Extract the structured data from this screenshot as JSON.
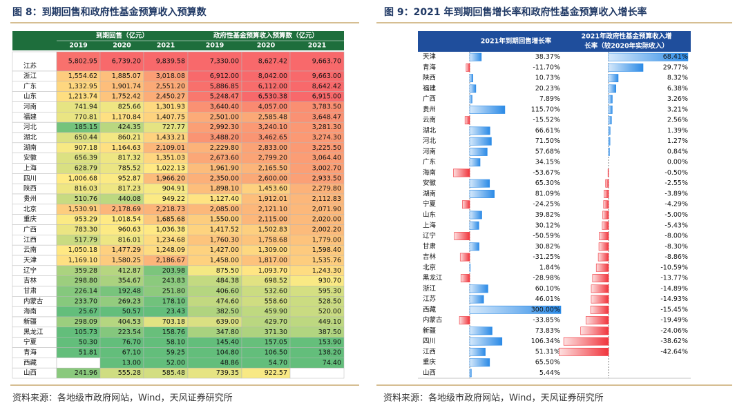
{
  "left": {
    "title": "图 8：到期回售和政府性基金预算收入预算数",
    "header": {
      "group1": "到期回售（亿元）",
      "group2": "政府性基金预算收入预算数（亿元）",
      "years": [
        "2019",
        "2020",
        "2021",
        "2019",
        "2020",
        "2021"
      ]
    },
    "rows": [
      [
        "江苏",
        "5,802.95",
        "6,739.20",
        "9,839.58",
        "7,330.00",
        "8,627.42",
        "9,663.70"
      ],
      [
        "浙江",
        "1,554.62",
        "1,885.07",
        "3,018.08",
        "6,912.00",
        "8,042.00",
        "9,663.00"
      ],
      [
        "广东",
        "1,332.95",
        "1,901.74",
        "2,551.20",
        "5,886.85",
        "6,112.00",
        "8,642.42"
      ],
      [
        "山东",
        "1,213.74",
        "1,752.42",
        "2,450.27",
        "5,248.47",
        "6,530.38",
        "6,915.00"
      ],
      [
        "河南",
        "741.94",
        "825.66",
        "1,301.93",
        "3,640.40",
        "4,057.00",
        "3,783.50"
      ],
      [
        "福建",
        "770.81",
        "1,170.84",
        "1,407.75",
        "2,501.00",
        "2,585.48",
        "3,648.47"
      ],
      [
        "河北",
        "185.15",
        "424.35",
        "727.77",
        "2,992.30",
        "3,240.10",
        "3,281.30"
      ],
      [
        "湖北",
        "650.44",
        "860.21",
        "1,433.21",
        "3,488.20",
        "3,462.65",
        "3,274.30"
      ],
      [
        "湖南",
        "907.18",
        "1,164.63",
        "2,109.01",
        "2,229.80",
        "2,833.00",
        "3,225.50"
      ],
      [
        "安徽",
        "656.39",
        "817.32",
        "1,351.03",
        "2,673.60",
        "2,799.20",
        "3,064.40"
      ],
      [
        "上海",
        "628.79",
        "785.52",
        "1,022.13",
        "1,961.90",
        "2,165.50",
        "3,002.70"
      ],
      [
        "四川",
        "1,006.68",
        "952.87",
        "1,966.20",
        "2,350.00",
        "2,600.00",
        "2,933.50"
      ],
      [
        "陕西",
        "816.03",
        "817.23",
        "904.91",
        "1,898.10",
        "1,453.60",
        "2,279.80"
      ],
      [
        "贵州",
        "510.76",
        "440.08",
        "949.22",
        "1,127.40",
        "1,912.01",
        "2,112.83"
      ],
      [
        "北京",
        "1,530.91",
        "2,178.69",
        "2,218.73",
        "2,085.00",
        "2,121.10",
        "2,071.90"
      ],
      [
        "重庆",
        "953.29",
        "1,018.54",
        "1,685.68",
        "1,550.00",
        "2,115.00",
        "2,020.00"
      ],
      [
        "广西",
        "783.30",
        "960.63",
        "1,036.38",
        "1,417.52",
        "1,502.83",
        "2,002.20"
      ],
      [
        "江西",
        "517.79",
        "816.01",
        "1,234.68",
        "1,760.30",
        "1,758.68",
        "1,779.00"
      ],
      [
        "云南",
        "1,050.18",
        "1,477.29",
        "1,248.09",
        "1,427.00",
        "1,309.00",
        "1,598.40"
      ],
      [
        "天津",
        "1,169.10",
        "1,580.25",
        "2,186.67",
        "1,458.00",
        "1,817.00",
        "1,535.76"
      ],
      [
        "辽宁",
        "359.28",
        "412.87",
        "203.98",
        "875.50",
        "1,093.70",
        "1,243.30"
      ],
      [
        "吉林",
        "298.80",
        "354.67",
        "243.83",
        "484.38",
        "698.52",
        "930.70"
      ],
      [
        "甘肃",
        "226.14",
        "192.48",
        "251.80",
        "406.60",
        "532.60",
        "595.30"
      ],
      [
        "内蒙古",
        "233.70",
        "269.23",
        "178.10",
        "474.60",
        "558.60",
        "528.50"
      ],
      [
        "海南",
        "25.67",
        "50.57",
        "23.43",
        "382.50",
        "459.90",
        "520.00"
      ],
      [
        "新疆",
        "298.09",
        "404.53",
        "703.18",
        "639.00",
        "429.70",
        "449.10"
      ],
      [
        "黑龙江",
        "105.73",
        "223.54",
        "158.76",
        "347.80",
        "371.30",
        "387.50"
      ],
      [
        "宁夏",
        "50.30",
        "76.70",
        "58.10",
        "145.40",
        "157.05",
        "153.90"
      ],
      [
        "青海",
        "51.81",
        "67.10",
        "59.25",
        "104.80",
        "106.50",
        "138.20"
      ],
      [
        "西藏",
        null,
        "13.00",
        "52.00",
        "48.86",
        "54.70",
        "74.40"
      ],
      [
        "山西",
        "241.96",
        "555.28",
        "585.48",
        "739.35",
        "922.57",
        null
      ]
    ],
    "source": "资料来源：各地级市政府网站，Wind，天风证券研究所"
  },
  "right": {
    "title": "图 9：2021 年到期回售增长率和政府性基金预算收入增长率",
    "col1_header": "2021年到期回售增长率",
    "col2_header_lines": [
      "2021年政府性基金预算收入增",
      "长率（较2020年实际收入）"
    ],
    "provinces": [
      "天津",
      "青海",
      "陕西",
      "福建",
      "广西",
      "贵州",
      "云南",
      "湖北",
      "河北",
      "河南",
      "广东",
      "海南",
      "安徽",
      "湖南",
      "宁夏",
      "山东",
      "上海",
      "辽宁",
      "甘肃",
      "吉林",
      "北京",
      "黑龙江",
      "浙江",
      "江苏",
      "西藏",
      "内蒙古",
      "新疆",
      "四川",
      "江西",
      "重庆",
      "山西"
    ],
    "repurchase_growth": {
      "values": [
        38.37,
        -11.7,
        10.73,
        20.23,
        7.89,
        115.7,
        -15.52,
        66.61,
        71.5,
        57.68,
        34.15,
        -53.67,
        65.3,
        81.09,
        -24.25,
        39.82,
        30.12,
        -50.59,
        30.82,
        -31.25,
        1.84,
        -28.98,
        60.1,
        46.01,
        300.0,
        -33.85,
        73.83,
        106.34,
        51.31,
        65.5,
        5.44
      ],
      "value_labels": [
        "38.37%",
        "-11.70%",
        "10.73%",
        "20.23%",
        "7.89%",
        "115.70%",
        "-15.52%",
        "66.61%",
        "71.50%",
        "57.68%",
        "34.15%",
        "-53.67%",
        "65.30%",
        "81.09%",
        "-24.25%",
        "39.82%",
        "30.12%",
        "-50.59%",
        "30.82%",
        "-31.25%",
        "1.84%",
        "-28.98%",
        "60.10%",
        "46.01%",
        "300.00%",
        "-33.85%",
        "73.83%",
        "106.34%",
        "51.31%",
        "65.50%",
        "5.44%"
      ]
    },
    "revenue_growth": {
      "values": [
        68.41,
        29.77,
        8.32,
        6.38,
        3.26,
        3.21,
        2.56,
        1.39,
        1.27,
        0.84,
        0.0,
        -0.5,
        -2.55,
        -3.89,
        -4.29,
        -5.0,
        -5.43,
        -8.0,
        -8.3,
        -8.86,
        -10.59,
        -13.77,
        -14.89,
        -14.93,
        -15.45,
        -19.49,
        -24.06,
        -38.62,
        -42.64
      ],
      "value_labels": [
        "68.41%",
        "29.77%",
        "8.32%",
        "6.38%",
        "3.26%",
        "3.21%",
        "2.56%",
        "1.39%",
        "1.27%",
        "0.84%",
        "0.00%",
        "-0.50%",
        "-2.55%",
        "-3.89%",
        "-4.29%",
        "-5.00%",
        "-5.43%",
        "-8.00%",
        "-8.30%",
        "-8.86%",
        "-10.59%",
        "-13.77%",
        "-14.89%",
        "-14.93%",
        "-15.45%",
        "-19.49%",
        "-24.06%",
        "-38.62%",
        "-42.64%"
      ]
    },
    "source": "资料来源：各地级市政府网站，Wind，天风证券研究所"
  }
}
